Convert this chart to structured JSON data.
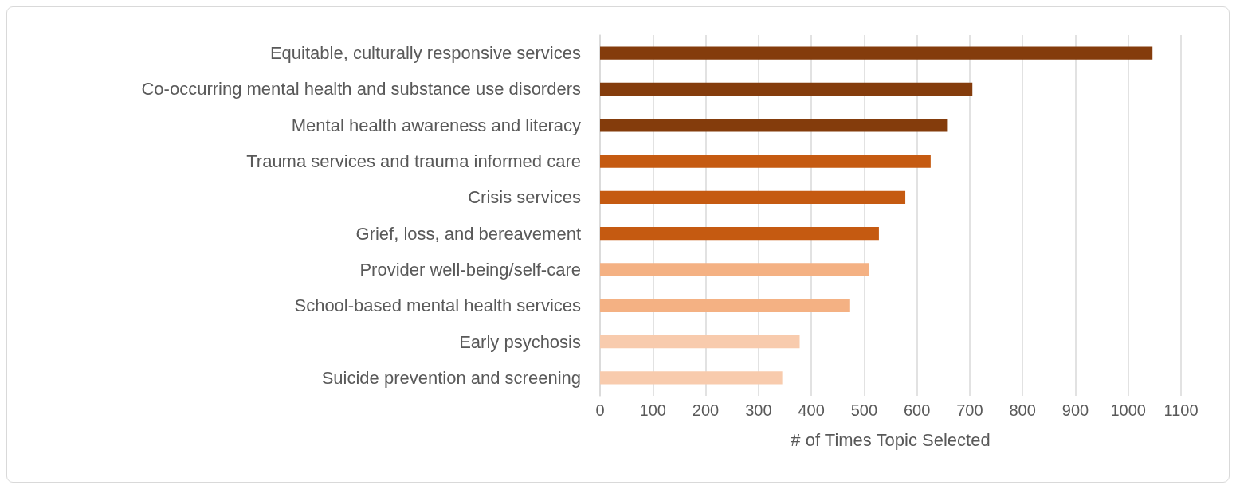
{
  "chart_data": {
    "type": "bar",
    "orientation": "horizontal",
    "xlabel": "# of Times Topic Selected",
    "categories": [
      "Equitable, culturally responsive services",
      "Co-occurring mental health and substance use disorders",
      "Mental health awareness and literacy",
      "Trauma services and trauma informed care",
      "Crisis services",
      "Grief, loss, and bereavement",
      "Provider well-being/self-care",
      "School-based mental health services",
      "Early psychosis",
      "Suicide prevention and screening"
    ],
    "values": [
      1046,
      705,
      657,
      626,
      578,
      528,
      510,
      472,
      378,
      345
    ],
    "colors": [
      "#843c0c",
      "#843c0c",
      "#843c0c",
      "#c55a11",
      "#c55a11",
      "#c55a11",
      "#f4b183",
      "#f4b183",
      "#f8cbad",
      "#f8cbad"
    ],
    "xlim": [
      0,
      1100
    ],
    "xticks": [
      0,
      100,
      200,
      300,
      400,
      500,
      600,
      700,
      800,
      900,
      1000,
      1100
    ],
    "grid": "x"
  }
}
